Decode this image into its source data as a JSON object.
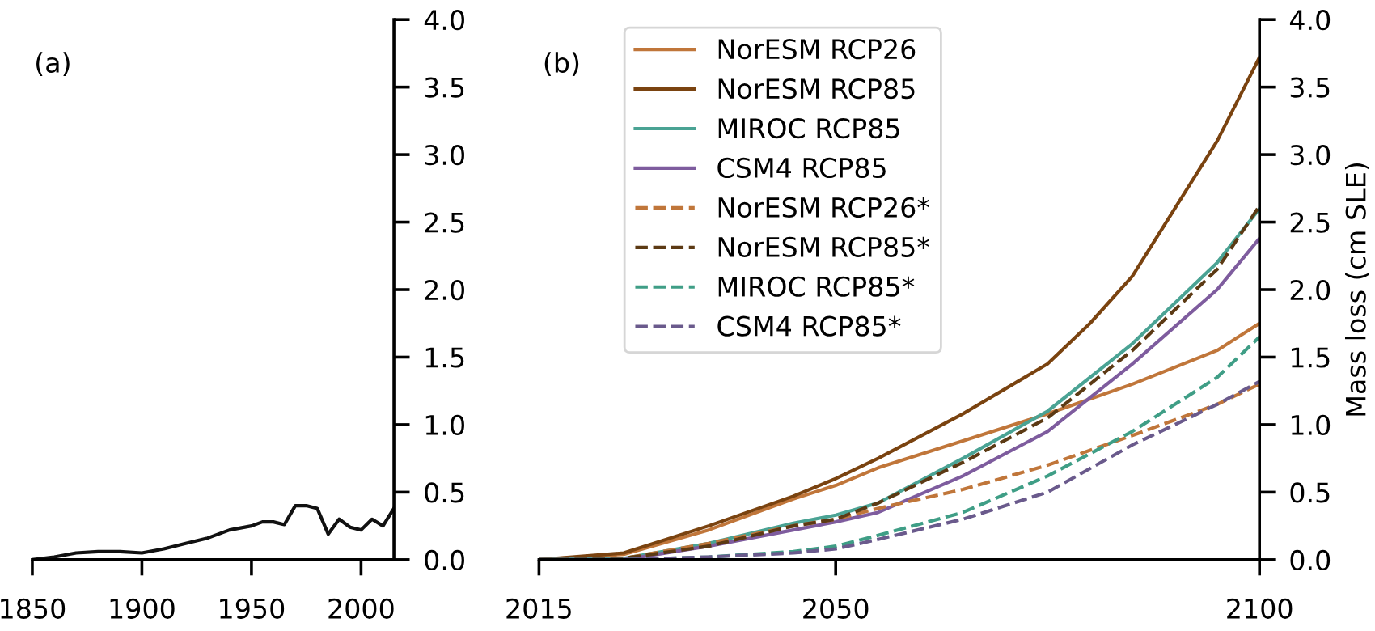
{
  "chart_data": [
    {
      "type": "line",
      "title": "(a)",
      "x": [
        1850,
        1860,
        1870,
        1880,
        1890,
        1900,
        1910,
        1920,
        1930,
        1940,
        1950,
        1955,
        1960,
        1965,
        1970,
        1975,
        1980,
        1985,
        1990,
        1995,
        2000,
        2005,
        2010,
        2015
      ],
      "series": [
        {
          "color": "#111111",
          "values": [
            0,
            0.02,
            0.05,
            0.06,
            0.06,
            0.05,
            0.08,
            0.12,
            0.16,
            0.22,
            0.25,
            0.28,
            0.28,
            0.26,
            0.4,
            0.4,
            0.38,
            0.19,
            0.3,
            0.24,
            0.22,
            0.3,
            0.25,
            0.38
          ]
        }
      ],
      "xlim": [
        1850,
        2015
      ],
      "xticks": [
        1850,
        1900,
        1950,
        2000
      ],
      "ylim": [
        0,
        4.0
      ],
      "yticks": [
        {
          "value": 0,
          "label": "0.0"
        },
        0.5,
        {
          "value": 1,
          "label": "1.0"
        },
        1.5,
        {
          "value": 2,
          "label": "2.0"
        },
        2.5,
        {
          "value": 3,
          "label": "3.0"
        },
        3.5,
        {
          "value": 4,
          "label": "4.0"
        }
      ],
      "grid": false,
      "legend": false
    },
    {
      "type": "line",
      "title": "(b)",
      "ylabel": "Mass loss (cm SLE)",
      "xlim": [
        2015,
        2100
      ],
      "xticks": [
        2015,
        2050,
        2100
      ],
      "ylim": [
        0,
        4.0
      ],
      "yticks": [
        {
          "value": 0,
          "label": "0.0"
        },
        0.5,
        {
          "value": 1,
          "label": "1.0"
        },
        1.5,
        {
          "value": 2,
          "label": "2.0"
        },
        2.5,
        {
          "value": 3,
          "label": "3.0"
        },
        3.5,
        {
          "value": 4,
          "label": "4.0"
        }
      ],
      "grid": false,
      "legend": "top left",
      "series": [
        {
          "name": "NorESM RCP26",
          "color": "#c0763a",
          "line_style": "solid",
          "x": [
            2015,
            2025,
            2035,
            2045,
            2050,
            2055,
            2065,
            2075,
            2085,
            2095,
            2100
          ],
          "values": [
            0,
            0.04,
            0.22,
            0.45,
            0.55,
            0.68,
            0.88,
            1.08,
            1.3,
            1.55,
            1.75
          ]
        },
        {
          "name": "NorESM RCP85",
          "color": "#7a4310",
          "line_style": "solid",
          "x": [
            2015,
            2025,
            2035,
            2045,
            2050,
            2055,
            2065,
            2075,
            2080,
            2085,
            2090,
            2095,
            2100
          ],
          "values": [
            0,
            0.05,
            0.25,
            0.47,
            0.6,
            0.75,
            1.08,
            1.45,
            1.75,
            2.1,
            2.6,
            3.1,
            3.72
          ]
        },
        {
          "name": "MIROC RCP85",
          "color": "#4aa394",
          "line_style": "solid",
          "x": [
            2015,
            2025,
            2035,
            2045,
            2050,
            2055,
            2065,
            2075,
            2085,
            2095,
            2100
          ],
          "values": [
            0,
            0.01,
            0.12,
            0.27,
            0.33,
            0.42,
            0.75,
            1.1,
            1.6,
            2.2,
            2.6
          ]
        },
        {
          "name": "CSM4 RCP85",
          "color": "#7e5c9e",
          "line_style": "solid",
          "x": [
            2015,
            2025,
            2035,
            2045,
            2050,
            2055,
            2065,
            2075,
            2085,
            2095,
            2100
          ],
          "values": [
            0,
            0,
            0.1,
            0.22,
            0.28,
            0.35,
            0.62,
            0.95,
            1.45,
            2.0,
            2.38
          ]
        },
        {
          "name": "NorESM RCP26*",
          "color": "#c0763a",
          "line_style": "dashed",
          "x": [
            2015,
            2025,
            2035,
            2045,
            2050,
            2055,
            2060,
            2065,
            2075,
            2085,
            2095,
            2100
          ],
          "values": [
            0,
            0.01,
            0.12,
            0.25,
            0.3,
            0.38,
            0.45,
            0.52,
            0.7,
            0.92,
            1.15,
            1.3
          ]
        },
        {
          "name": "NorESM RCP85*",
          "color": "#5c3a14",
          "line_style": "dashed",
          "x": [
            2015,
            2025,
            2035,
            2045,
            2050,
            2055,
            2065,
            2075,
            2085,
            2095,
            2100
          ],
          "values": [
            0,
            0.01,
            0.1,
            0.25,
            0.3,
            0.42,
            0.72,
            1.05,
            1.55,
            2.15,
            2.62
          ]
        },
        {
          "name": "MIROC RCP85*",
          "color": "#3f9e86",
          "line_style": "dashed",
          "x": [
            2015,
            2025,
            2035,
            2045,
            2050,
            2055,
            2065,
            2075,
            2085,
            2095,
            2100
          ],
          "values": [
            0,
            0,
            0.02,
            0.06,
            0.1,
            0.18,
            0.35,
            0.62,
            0.95,
            1.35,
            1.65
          ]
        },
        {
          "name": "CSM4 RCP85*",
          "color": "#6a5a8c",
          "line_style": "dashed",
          "x": [
            2015,
            2025,
            2035,
            2045,
            2050,
            2055,
            2065,
            2075,
            2085,
            2095,
            2100
          ],
          "values": [
            0,
            0,
            0.02,
            0.05,
            0.08,
            0.15,
            0.3,
            0.5,
            0.85,
            1.15,
            1.32
          ]
        }
      ]
    }
  ]
}
